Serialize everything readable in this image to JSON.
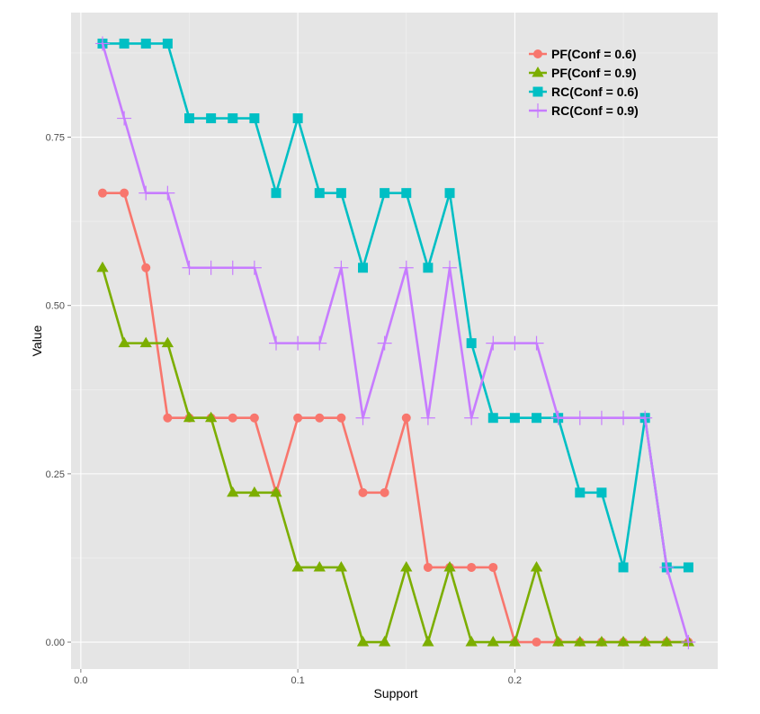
{
  "chart_data": {
    "type": "line",
    "xlabel": "Support",
    "ylabel": "Value",
    "xlim": [
      -0.0045,
      0.2935
    ],
    "ylim": [
      -0.04,
      0.935
    ],
    "x_ticks": [
      {
        "value": 0.0,
        "label": "0.0"
      },
      {
        "value": 0.1,
        "label": "0.1"
      },
      {
        "value": 0.2,
        "label": "0.2"
      }
    ],
    "y_ticks": [
      {
        "value": 0.0,
        "label": "0.00"
      },
      {
        "value": 0.25,
        "label": "0.25"
      },
      {
        "value": 0.5,
        "label": "0.50"
      },
      {
        "value": 0.75,
        "label": "0.75"
      }
    ],
    "x": [
      0.01,
      0.02,
      0.03,
      0.04,
      0.05,
      0.06,
      0.07,
      0.08,
      0.09,
      0.1,
      0.11,
      0.12,
      0.13,
      0.14,
      0.15,
      0.16,
      0.17,
      0.18,
      0.19,
      0.2,
      0.21,
      0.22,
      0.23,
      0.24,
      0.25,
      0.26,
      0.27,
      0.28
    ],
    "grid": true,
    "legend_position": "top-right",
    "series": [
      {
        "name": "PF(Conf = 0.6)",
        "color": "#f8766d",
        "marker": "circle",
        "values": [
          0.667,
          0.667,
          0.556,
          0.333,
          0.333,
          0.333,
          0.333,
          0.333,
          0.222,
          0.333,
          0.333,
          0.333,
          0.222,
          0.222,
          0.333,
          0.111,
          0.111,
          0.111,
          0.111,
          0.0,
          0.0,
          0.0,
          0.0,
          0.0,
          0.0,
          0.0,
          0.0,
          0.0
        ]
      },
      {
        "name": "PF(Conf = 0.9)",
        "color": "#7cae00",
        "marker": "triangle",
        "values": [
          0.556,
          0.444,
          0.444,
          0.444,
          0.333,
          0.333,
          0.222,
          0.222,
          0.222,
          0.111,
          0.111,
          0.111,
          0.0,
          0.0,
          0.111,
          0.0,
          0.111,
          0.0,
          0.0,
          0.0,
          0.111,
          0.0,
          0.0,
          0.0,
          0.0,
          0.0,
          0.0,
          0.0
        ]
      },
      {
        "name": "RC(Conf = 0.6)",
        "color": "#00bfc4",
        "marker": "square",
        "values": [
          0.889,
          0.889,
          0.889,
          0.889,
          0.778,
          0.778,
          0.778,
          0.778,
          0.667,
          0.778,
          0.667,
          0.667,
          0.556,
          0.667,
          0.667,
          0.556,
          0.667,
          0.444,
          0.333,
          0.333,
          0.333,
          0.333,
          0.222,
          0.222,
          0.111,
          0.333,
          0.111,
          0.111
        ]
      },
      {
        "name": "RC(Conf = 0.9)",
        "color": "#c77cff",
        "marker": "plus",
        "values": [
          0.889,
          0.778,
          0.667,
          0.667,
          0.556,
          0.556,
          0.556,
          0.556,
          0.444,
          0.444,
          0.444,
          0.556,
          0.333,
          0.444,
          0.556,
          0.333,
          0.556,
          0.333,
          0.444,
          0.444,
          0.444,
          0.333,
          0.333,
          0.333,
          0.333,
          0.333,
          0.111,
          0.0
        ]
      }
    ]
  }
}
